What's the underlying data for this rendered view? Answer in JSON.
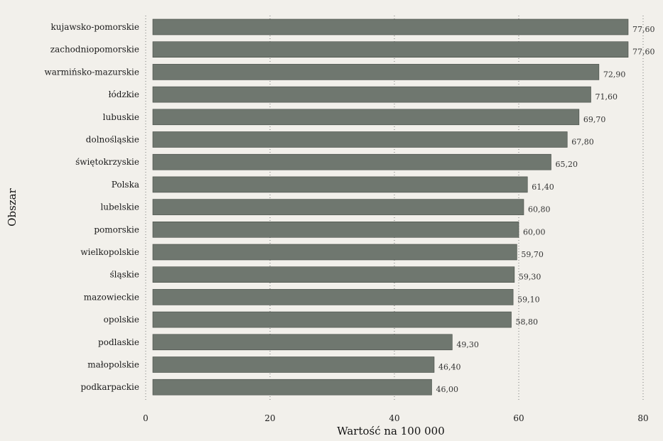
{
  "chart_data": {
    "type": "bar",
    "orientation": "horizontal",
    "categories": [
      "kujawsko-pomorskie",
      "zachodniopomorskie",
      "warmińsko-mazurskie",
      "łódzkie",
      "lubuskie",
      "dolnośląskie",
      "świętokrzyskie",
      "Polska",
      "lubelskie",
      "pomorskie",
      "wielkopolskie",
      "śląskie",
      "mazowieckie",
      "opolskie",
      "podlaskie",
      "małopolskie",
      "podkarpackie"
    ],
    "values": [
      77.6,
      77.6,
      72.9,
      71.6,
      69.7,
      67.8,
      65.2,
      61.4,
      60.8,
      60.0,
      59.7,
      59.3,
      59.1,
      58.8,
      49.3,
      46.4,
      46.0
    ],
    "value_labels": [
      "77,60",
      "77,60",
      "72,90",
      "71,60",
      "69,70",
      "67,80",
      "65,20",
      "61,40",
      "60,80",
      "60,00",
      "59,70",
      "59,30",
      "59,10",
      "58,80",
      "49,30",
      "46,40",
      "46,00"
    ],
    "xlabel": "Wartość na 100 000",
    "ylabel": "Obszar",
    "xlim": [
      0,
      80
    ],
    "xticks": [
      0,
      20,
      40,
      60,
      80
    ],
    "grid": "vertical dotted",
    "colors": {
      "bar": "#6f776f",
      "background": "#f2f0eb"
    }
  }
}
